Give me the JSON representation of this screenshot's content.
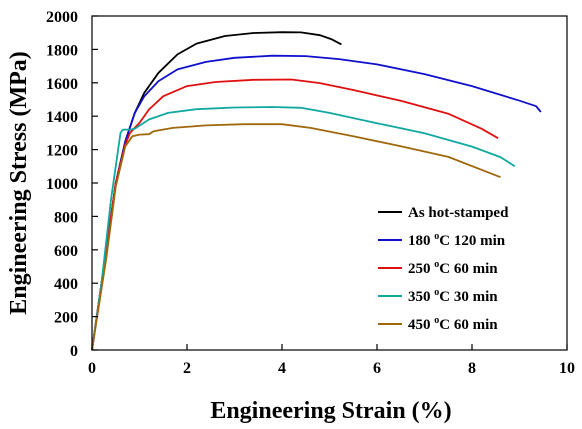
{
  "chart_data": {
    "type": "line",
    "title": "",
    "xlabel": "Engineering Strain (%)",
    "ylabel": "Engineering Stress (MPa)",
    "xlim": [
      0,
      10
    ],
    "ylim": [
      0,
      2000
    ],
    "xticks": [
      "0",
      "2",
      "4",
      "6",
      "8",
      "10"
    ],
    "yticks": [
      "0",
      "200",
      "400",
      "600",
      "800",
      "1000",
      "1200",
      "1400",
      "1600",
      "1800",
      "2000"
    ],
    "grid": false,
    "legend_position": "bottom-right",
    "series": [
      {
        "name": "As hot-stamped",
        "legend": {
          "pre": "As hot-stamped",
          "sup": "",
          "post": ""
        },
        "color": "#000000",
        "points": [
          [
            0,
            0
          ],
          [
            0.3,
            600
          ],
          [
            0.5,
            1000
          ],
          [
            0.7,
            1250
          ],
          [
            0.9,
            1420
          ],
          [
            1.1,
            1540
          ],
          [
            1.4,
            1660
          ],
          [
            1.8,
            1770
          ],
          [
            2.2,
            1835
          ],
          [
            2.8,
            1880
          ],
          [
            3.4,
            1898
          ],
          [
            4.0,
            1903
          ],
          [
            4.4,
            1902
          ],
          [
            4.8,
            1885
          ],
          [
            5.05,
            1860
          ],
          [
            5.25,
            1830
          ]
        ]
      },
      {
        "name": "180 oC 120 min",
        "legend": {
          "pre": "180 ",
          "sup": "o",
          "post": "C 120 min"
        },
        "color": "#1010cc",
        "points": [
          [
            0,
            0
          ],
          [
            0.3,
            600
          ],
          [
            0.5,
            1000
          ],
          [
            0.7,
            1250
          ],
          [
            0.9,
            1420
          ],
          [
            1.1,
            1520
          ],
          [
            1.4,
            1610
          ],
          [
            1.8,
            1680
          ],
          [
            2.4,
            1725
          ],
          [
            3.0,
            1750
          ],
          [
            3.8,
            1762
          ],
          [
            4.5,
            1760
          ],
          [
            5.2,
            1742
          ],
          [
            6.0,
            1710
          ],
          [
            7.0,
            1652
          ],
          [
            8.0,
            1580
          ],
          [
            9.0,
            1493
          ],
          [
            9.35,
            1460
          ],
          [
            9.45,
            1425
          ]
        ]
      },
      {
        "name": "250 oC 60 min",
        "legend": {
          "pre": "250 ",
          "sup": "o",
          "post": "C 60 min"
        },
        "color": "#e01010",
        "points": [
          [
            0,
            0
          ],
          [
            0.3,
            600
          ],
          [
            0.5,
            1000
          ],
          [
            0.7,
            1230
          ],
          [
            0.8,
            1300
          ],
          [
            1.0,
            1360
          ],
          [
            1.2,
            1440
          ],
          [
            1.5,
            1520
          ],
          [
            2.0,
            1580
          ],
          [
            2.6,
            1605
          ],
          [
            3.4,
            1618
          ],
          [
            4.2,
            1620
          ],
          [
            4.8,
            1598
          ],
          [
            5.5,
            1557
          ],
          [
            6.5,
            1492
          ],
          [
            7.5,
            1415
          ],
          [
            8.2,
            1325
          ],
          [
            8.55,
            1268
          ]
        ]
      },
      {
        "name": "350 oC 30 min",
        "legend": {
          "pre": "350 ",
          "sup": "o",
          "post": "C 30 min"
        },
        "color": "#10a8a0",
        "points": [
          [
            0,
            0
          ],
          [
            0.2,
            400
          ],
          [
            0.4,
            900
          ],
          [
            0.6,
            1300
          ],
          [
            0.65,
            1320
          ],
          [
            0.8,
            1320
          ],
          [
            0.9,
            1325
          ],
          [
            1.2,
            1380
          ],
          [
            1.6,
            1420
          ],
          [
            2.2,
            1442
          ],
          [
            3.0,
            1452
          ],
          [
            3.8,
            1455
          ],
          [
            4.4,
            1450
          ],
          [
            5.0,
            1420
          ],
          [
            6.0,
            1358
          ],
          [
            7.0,
            1298
          ],
          [
            8.0,
            1218
          ],
          [
            8.6,
            1155
          ],
          [
            8.9,
            1100
          ]
        ]
      },
      {
        "name": "450 oC 60 min",
        "legend": {
          "pre": "450 ",
          "sup": "o",
          "post": "C 60 min"
        },
        "color": "#a0680c",
        "points": [
          [
            0,
            0
          ],
          [
            0.3,
            550
          ],
          [
            0.5,
            980
          ],
          [
            0.7,
            1220
          ],
          [
            0.85,
            1280
          ],
          [
            1.0,
            1290
          ],
          [
            1.2,
            1292
          ],
          [
            1.3,
            1310
          ],
          [
            1.7,
            1330
          ],
          [
            2.4,
            1345
          ],
          [
            3.2,
            1352
          ],
          [
            4.0,
            1352
          ],
          [
            4.6,
            1330
          ],
          [
            5.5,
            1280
          ],
          [
            6.5,
            1220
          ],
          [
            7.5,
            1156
          ],
          [
            8.6,
            1035
          ]
        ]
      }
    ]
  }
}
